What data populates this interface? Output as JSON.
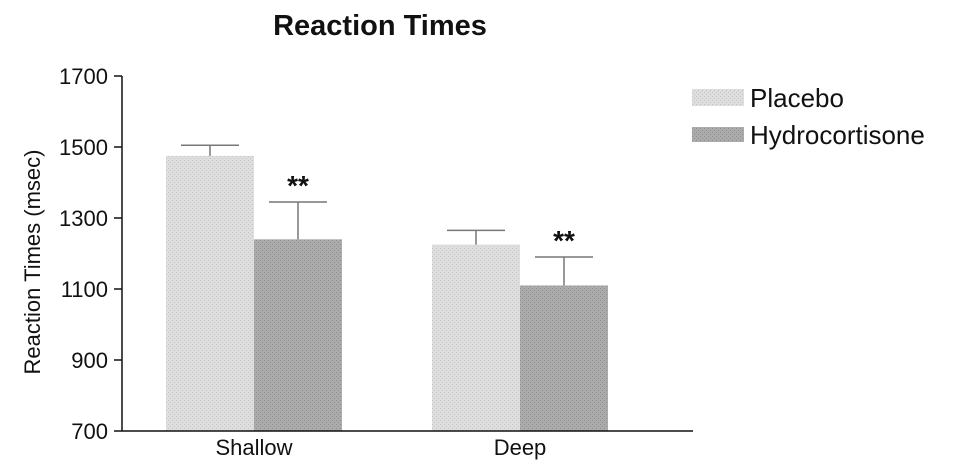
{
  "chart_data": {
    "type": "bar",
    "title": "Reaction Times",
    "xlabel": "",
    "ylabel": "Reaction Times (msec)",
    "ylim": [
      700,
      1700
    ],
    "yticks": [
      700,
      900,
      1100,
      1300,
      1500,
      1700
    ],
    "categories": [
      "Shallow",
      "Deep"
    ],
    "series": [
      {
        "name": "Placebo",
        "values": [
          1475,
          1225
        ],
        "errors": [
          30,
          40
        ],
        "color": "#dcdcdc"
      },
      {
        "name": "Hydrocortisone",
        "values": [
          1240,
          1110
        ],
        "errors": [
          105,
          80
        ],
        "color": "#a9a9a9"
      }
    ],
    "annotations": [
      {
        "category": 0,
        "series": 1,
        "text": "**"
      },
      {
        "category": 1,
        "series": 1,
        "text": "**"
      }
    ],
    "legend_position": "top-right",
    "grid": false
  }
}
